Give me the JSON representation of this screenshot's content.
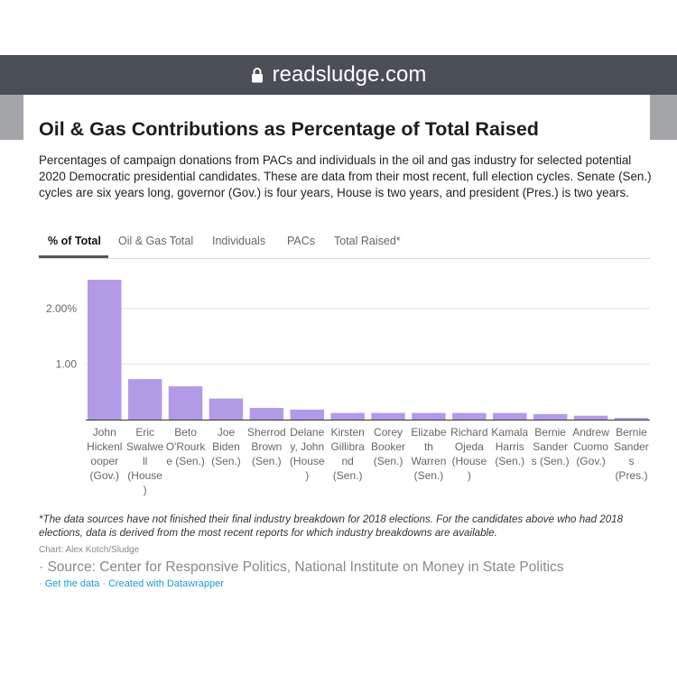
{
  "browser": {
    "url": "readsludge.com"
  },
  "chart": {
    "title": "Oil & Gas Contributions as Percentage of Total Raised",
    "description": "Percentages of campaign donations from PACs and individuals in the oil and gas industry for selected potential 2020 Democratic presidential candidates. These are data from their most recent, full election cycles. Senate (Sen.) cycles are six years long, governor (Gov.) is four years, House is two years, and president (Pres.) is two years.",
    "tabs": [
      "% of Total",
      "Oil & Gas Total",
      "Individuals",
      "PACs",
      "Total Raised*"
    ],
    "footnote": "*The data sources have not finished their final industry breakdown for 2018 elections. For the candidates above who had 2018 elections, data is derived from the most recent reports for which industry breakdowns are available.",
    "credit": "Chart: Alex Kotch/Sludge",
    "source": "· Source: Center for Responsive Politics, National Institute on Money in State Politics",
    "link_sep": "·",
    "get_data": "Get the data",
    "created_with": "Created with Datawrapper"
  },
  "chart_data": {
    "type": "bar",
    "title": "Oil & Gas Contributions as Percentage of Total Raised",
    "xlabel": "",
    "ylabel": "",
    "ylim": [
      0,
      2.5
    ],
    "yticks": [
      {
        "value": 1,
        "label": "1.00"
      },
      {
        "value": 2,
        "label": "2.00%"
      }
    ],
    "grid": true,
    "bar_color": "#b39ae6",
    "categories": [
      {
        "lines": [
          "John",
          "Hickenl",
          "ooper",
          "(Gov.)"
        ]
      },
      {
        "lines": [
          "Eric",
          "Swalwe",
          "ll",
          "(House",
          ")"
        ]
      },
      {
        "lines": [
          "Beto",
          "O'Rourk",
          "e (Sen.)"
        ]
      },
      {
        "lines": [
          "Joe",
          "Biden",
          "(Sen.)"
        ]
      },
      {
        "lines": [
          "Sherrod",
          "Brown",
          "(Sen.)"
        ]
      },
      {
        "lines": [
          "Delane",
          "y, John",
          "(House",
          ")"
        ]
      },
      {
        "lines": [
          "Kirsten",
          "Gillibra",
          "nd",
          "(Sen.)"
        ]
      },
      {
        "lines": [
          "Corey",
          "Booker",
          "(Sen.)"
        ]
      },
      {
        "lines": [
          "Elizabe",
          "th",
          "Warren",
          "(Sen.)"
        ]
      },
      {
        "lines": [
          "Richard",
          "Ojeda",
          "(House",
          ")"
        ]
      },
      {
        "lines": [
          "Kamala",
          "Harris",
          "(Sen.)"
        ]
      },
      {
        "lines": [
          "Bernie",
          "Sander",
          "s (Sen.)"
        ]
      },
      {
        "lines": [
          "Andrew",
          "Cuomo",
          "(Gov.)"
        ]
      },
      {
        "lines": [
          "Bernie",
          "Sander",
          "s",
          "(Pres.)"
        ]
      }
    ],
    "values": [
      2.52,
      0.73,
      0.6,
      0.38,
      0.21,
      0.18,
      0.12,
      0.12,
      0.12,
      0.12,
      0.12,
      0.1,
      0.07,
      0.03
    ]
  }
}
